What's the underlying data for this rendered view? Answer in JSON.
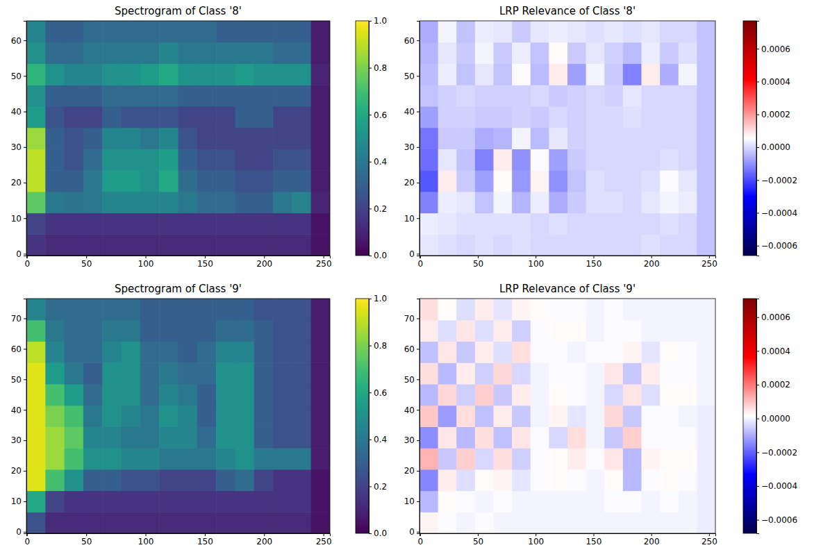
{
  "chart_data": [
    {
      "type": "heatmap",
      "title": "Spectrogram of Class '8'",
      "color": "viridis",
      "xlim": [
        -0.5,
        255.5
      ],
      "ylim": [
        -0.5,
        65.5
      ],
      "xticks": [
        0,
        50,
        100,
        150,
        200,
        250
      ],
      "yticks": [
        0,
        10,
        20,
        30,
        40,
        50,
        60
      ],
      "x_edges": [
        -0.5,
        15.5,
        31.5,
        47.5,
        63.5,
        79.5,
        95.5,
        111.5,
        127.5,
        143.5,
        159.5,
        175.5,
        191.5,
        207.5,
        223.5,
        239.5,
        255.5
      ],
      "y_edges": [
        -0.5,
        5.5,
        11.5,
        17.5,
        23.5,
        29.5,
        35.5,
        41.5,
        47.5,
        53.5,
        59.5,
        65.5
      ],
      "cells": [
        [
          0.15,
          0.12,
          0.12,
          0.12,
          0.12,
          0.12,
          0.12,
          0.12,
          0.12,
          0.12,
          0.12,
          0.12,
          0.12,
          0.12,
          0.12,
          0.05
        ],
        [
          0.2,
          0.15,
          0.15,
          0.15,
          0.15,
          0.15,
          0.15,
          0.15,
          0.15,
          0.15,
          0.15,
          0.15,
          0.15,
          0.15,
          0.15,
          0.05
        ],
        [
          0.75,
          0.4,
          0.38,
          0.4,
          0.45,
          0.45,
          0.45,
          0.45,
          0.4,
          0.35,
          0.35,
          0.3,
          0.3,
          0.4,
          0.45,
          0.1
        ],
        [
          0.9,
          0.3,
          0.3,
          0.4,
          0.55,
          0.55,
          0.5,
          0.6,
          0.35,
          0.3,
          0.3,
          0.25,
          0.25,
          0.3,
          0.3,
          0.08
        ],
        [
          0.9,
          0.3,
          0.25,
          0.35,
          0.5,
          0.5,
          0.5,
          0.55,
          0.3,
          0.25,
          0.25,
          0.2,
          0.2,
          0.25,
          0.25,
          0.08
        ],
        [
          0.85,
          0.3,
          0.25,
          0.3,
          0.45,
          0.45,
          0.4,
          0.45,
          0.25,
          0.2,
          0.2,
          0.2,
          0.2,
          0.2,
          0.2,
          0.08
        ],
        [
          0.55,
          0.25,
          0.2,
          0.2,
          0.3,
          0.25,
          0.25,
          0.25,
          0.2,
          0.2,
          0.2,
          0.3,
          0.3,
          0.2,
          0.2,
          0.08
        ],
        [
          0.5,
          0.3,
          0.3,
          0.3,
          0.35,
          0.35,
          0.35,
          0.35,
          0.3,
          0.3,
          0.3,
          0.3,
          0.3,
          0.3,
          0.3,
          0.08
        ],
        [
          0.65,
          0.5,
          0.45,
          0.45,
          0.5,
          0.5,
          0.55,
          0.6,
          0.5,
          0.5,
          0.5,
          0.55,
          0.5,
          0.5,
          0.5,
          0.1
        ],
        [
          0.5,
          0.35,
          0.35,
          0.4,
          0.4,
          0.4,
          0.4,
          0.45,
          0.4,
          0.4,
          0.4,
          0.4,
          0.4,
          0.35,
          0.35,
          0.08
        ],
        [
          0.45,
          0.3,
          0.3,
          0.35,
          0.35,
          0.35,
          0.35,
          0.35,
          0.35,
          0.35,
          0.3,
          0.3,
          0.3,
          0.3,
          0.3,
          0.08
        ]
      ],
      "colorbar": {
        "range": [
          0,
          1
        ],
        "ticks": [
          {
            "value": 0,
            "label": "0.0"
          },
          {
            "value": 0.2,
            "label": "0.2"
          },
          {
            "value": 0.4,
            "label": "0.4"
          },
          {
            "value": 0.6,
            "label": "0.6"
          },
          {
            "value": 0.8,
            "label": "0.8"
          },
          {
            "value": 1,
            "label": "1.0"
          }
        ]
      }
    },
    {
      "type": "heatmap",
      "title": "LRP Relevance of Class '8'",
      "color": "seismic",
      "xlim": [
        -0.5,
        255.5
      ],
      "ylim": [
        -0.5,
        65.5
      ],
      "xticks": [
        0,
        50,
        100,
        150,
        200,
        250
      ],
      "yticks": [
        0,
        10,
        20,
        30,
        40,
        50,
        60
      ],
      "x_edges": [
        -0.5,
        15.5,
        31.5,
        47.5,
        63.5,
        79.5,
        95.5,
        111.5,
        127.5,
        143.5,
        159.5,
        175.5,
        191.5,
        207.5,
        223.5,
        239.5,
        255.5
      ],
      "y_edges": [
        -0.5,
        5.5,
        11.5,
        17.5,
        23.5,
        29.5,
        35.5,
        41.5,
        47.5,
        53.5,
        59.5,
        65.5
      ],
      "cells": [
        [
          2e-05,
          1e-05,
          0,
          1e-05,
          0,
          1e-05,
          0,
          0,
          0,
          0,
          0,
          0,
          1e-05,
          0,
          0,
          -3e-05
        ],
        [
          3e-05,
          2e-05,
          1e-05,
          1e-05,
          1e-05,
          1e-05,
          0,
          1e-05,
          0,
          0,
          0,
          0,
          0,
          1e-05,
          0,
          -3e-05
        ],
        [
          -0.00012,
          3e-05,
          2e-05,
          -3e-05,
          4e-05,
          -5e-05,
          3e-05,
          -6e-05,
          -2e-05,
          1e-05,
          1e-05,
          0,
          2e-05,
          4e-05,
          3e-05,
          -3e-05
        ],
        [
          -0.00018,
          8e-05,
          -2e-05,
          -8e-05,
          6e-05,
          -9e-05,
          7e-05,
          -0.0001,
          -3e-05,
          1e-05,
          0,
          0,
          1e-05,
          5e-05,
          2e-05,
          -3e-05
        ],
        [
          -0.00015,
          2e-05,
          -3e-05,
          -0.00012,
          8e-05,
          -0.0001,
          5e-05,
          -8e-05,
          -2e-05,
          0,
          0,
          0,
          0,
          1e-05,
          0,
          -3e-05
        ],
        [
          -0.00014,
          -2e-05,
          -2e-05,
          -6e-05,
          -5e-05,
          4e-05,
          -4e-05,
          2e-05,
          -1e-05,
          0,
          0,
          0,
          0,
          0,
          0,
          -3e-05
        ],
        [
          -8e-05,
          -1e-05,
          -1e-05,
          -2e-05,
          -2e-05,
          -1e-05,
          -2e-05,
          0,
          -1e-05,
          0,
          0,
          1e-05,
          0,
          0,
          0,
          -3e-05
        ],
        [
          -3e-05,
          -1e-05,
          0,
          -1e-05,
          -1e-05,
          -1e-05,
          0,
          -2e-05,
          -1e-05,
          0,
          -1e-05,
          2e-05,
          0,
          0,
          0,
          -3e-05
        ],
        [
          -4e-05,
          3e-05,
          -3e-05,
          2e-05,
          -3e-05,
          5e-05,
          -4e-05,
          8e-05,
          -8e-05,
          4e-05,
          -2e-05,
          -0.00012,
          8e-05,
          -6e-05,
          4e-05,
          -3e-05
        ],
        [
          -5e-05,
          2e-05,
          -2e-05,
          4e-05,
          -2e-05,
          3e-05,
          -3e-05,
          6e-05,
          -2e-05,
          2e-05,
          -1e-05,
          -4e-05,
          3e-05,
          -2e-05,
          1e-05,
          -3e-05
        ],
        [
          -6e-05,
          4e-05,
          -3e-05,
          3e-05,
          2e-05,
          -2e-05,
          2e-05,
          3e-05,
          2e-05,
          1e-05,
          2e-05,
          1e-05,
          2e-05,
          0,
          0,
          -3e-05
        ]
      ],
      "colorbar": {
        "range": [
          -0.00066,
          0.00077
        ],
        "ticks": [
          {
            "value": -0.0006,
            "label": "−0.0006"
          },
          {
            "value": -0.0004,
            "label": "−0.0004"
          },
          {
            "value": -0.0002,
            "label": "−0.0002"
          },
          {
            "value": 0,
            "label": "0.0000"
          },
          {
            "value": 0.0002,
            "label": "0.0002"
          },
          {
            "value": 0.0004,
            "label": "0.0004"
          },
          {
            "value": 0.0006,
            "label": "0.0006"
          }
        ]
      }
    },
    {
      "type": "heatmap",
      "title": "Spectrogram of Class '9'",
      "color": "viridis",
      "xlim": [
        -0.5,
        255.5
      ],
      "ylim": [
        -0.5,
        76.5
      ],
      "xticks": [
        0,
        50,
        100,
        150,
        200,
        250
      ],
      "yticks": [
        0,
        10,
        20,
        30,
        40,
        50,
        60,
        70
      ],
      "x_edges": [
        -0.5,
        15.5,
        31.5,
        47.5,
        63.5,
        79.5,
        95.5,
        111.5,
        127.5,
        143.5,
        159.5,
        175.5,
        191.5,
        207.5,
        223.5,
        239.5,
        255.5
      ],
      "y_edges": [
        -0.5,
        6.5,
        13.5,
        20.5,
        27.5,
        34.5,
        41.5,
        48.5,
        55.5,
        62.5,
        69.5,
        76.5
      ],
      "cells": [
        [
          0.25,
          0.12,
          0.12,
          0.12,
          0.12,
          0.12,
          0.12,
          0.12,
          0.12,
          0.12,
          0.12,
          0.12,
          0.12,
          0.12,
          0.12,
          0.05
        ],
        [
          0.6,
          0.2,
          0.15,
          0.15,
          0.15,
          0.15,
          0.15,
          0.15,
          0.15,
          0.15,
          0.15,
          0.15,
          0.15,
          0.15,
          0.15,
          0.05
        ],
        [
          0.95,
          0.7,
          0.5,
          0.3,
          0.3,
          0.25,
          0.25,
          0.2,
          0.2,
          0.2,
          0.3,
          0.35,
          0.2,
          0.15,
          0.15,
          0.05
        ],
        [
          0.95,
          0.85,
          0.7,
          0.5,
          0.5,
          0.45,
          0.45,
          0.4,
          0.4,
          0.4,
          0.45,
          0.5,
          0.4,
          0.4,
          0.4,
          0.08
        ],
        [
          0.95,
          0.85,
          0.75,
          0.45,
          0.45,
          0.4,
          0.4,
          0.45,
          0.45,
          0.35,
          0.5,
          0.5,
          0.3,
          0.25,
          0.25,
          0.08
        ],
        [
          0.95,
          0.8,
          0.7,
          0.4,
          0.5,
          0.45,
          0.4,
          0.5,
          0.45,
          0.3,
          0.5,
          0.5,
          0.3,
          0.25,
          0.25,
          0.08
        ],
        [
          0.95,
          0.7,
          0.55,
          0.35,
          0.5,
          0.5,
          0.35,
          0.45,
          0.4,
          0.3,
          0.5,
          0.5,
          0.3,
          0.25,
          0.25,
          0.08
        ],
        [
          0.95,
          0.55,
          0.4,
          0.3,
          0.5,
          0.5,
          0.35,
          0.4,
          0.35,
          0.35,
          0.5,
          0.5,
          0.3,
          0.25,
          0.25,
          0.08
        ],
        [
          0.9,
          0.45,
          0.35,
          0.35,
          0.45,
          0.5,
          0.35,
          0.35,
          0.3,
          0.35,
          0.45,
          0.45,
          0.3,
          0.25,
          0.25,
          0.08
        ],
        [
          0.7,
          0.4,
          0.35,
          0.35,
          0.4,
          0.4,
          0.3,
          0.3,
          0.3,
          0.3,
          0.35,
          0.35,
          0.3,
          0.25,
          0.25,
          0.08
        ],
        [
          0.45,
          0.35,
          0.35,
          0.35,
          0.35,
          0.35,
          0.3,
          0.3,
          0.3,
          0.3,
          0.3,
          0.3,
          0.25,
          0.25,
          0.25,
          0.08
        ]
      ],
      "colorbar": {
        "range": [
          0,
          1
        ],
        "ticks": [
          {
            "value": 0,
            "label": "0.0"
          },
          {
            "value": 0.2,
            "label": "0.2"
          },
          {
            "value": 0.4,
            "label": "0.4"
          },
          {
            "value": 0.6,
            "label": "0.6"
          },
          {
            "value": 0.8,
            "label": "0.8"
          },
          {
            "value": 1,
            "label": "1.0"
          }
        ]
      }
    },
    {
      "type": "heatmap",
      "title": "LRP Relevance of Class '9'",
      "color": "seismic",
      "xlim": [
        -0.5,
        255.5
      ],
      "ylim": [
        -0.5,
        76.5
      ],
      "xticks": [
        0,
        50,
        100,
        150,
        200,
        250
      ],
      "yticks": [
        0,
        10,
        20,
        30,
        40,
        50,
        60,
        70
      ],
      "x_edges": [
        -0.5,
        15.5,
        31.5,
        47.5,
        63.5,
        79.5,
        95.5,
        111.5,
        127.5,
        143.5,
        159.5,
        175.5,
        191.5,
        207.5,
        223.5,
        239.5,
        255.5
      ],
      "y_edges": [
        -0.5,
        6.5,
        13.5,
        20.5,
        27.5,
        34.5,
        41.5,
        48.5,
        55.5,
        62.5,
        69.5,
        76.5
      ],
      "cells": [
        [
          3e-05,
          1e-05,
          0,
          1e-05,
          0,
          0,
          0,
          0,
          0,
          0,
          0,
          0,
          0,
          0,
          0,
          -1e-05
        ],
        [
          -8e-05,
          2e-05,
          1e-05,
          0,
          1e-05,
          0,
          0,
          0,
          0,
          0,
          1e-05,
          1e-05,
          0,
          1e-05,
          0,
          -1e-05
        ],
        [
          -0.00015,
          4e-05,
          -3e-05,
          2e-05,
          3e-05,
          -2e-05,
          1e-05,
          2e-05,
          1e-05,
          0,
          2e-05,
          -8e-05,
          1e-05,
          2e-05,
          1e-05,
          -1e-05
        ],
        [
          0.00012,
          -6e-05,
          8e-05,
          -4e-05,
          6e-05,
          -5e-05,
          1e-05,
          2e-05,
          4e-05,
          1e-05,
          5e-05,
          -8e-05,
          3e-05,
          2e-05,
          2e-05,
          -1e-05
        ],
        [
          -0.00014,
          5e-05,
          -8e-05,
          6e-05,
          -7e-05,
          5e-05,
          1e-05,
          -4e-05,
          6e-05,
          0,
          -6e-05,
          8e-05,
          1e-05,
          1e-05,
          1e-05,
          -1e-05
        ],
        [
          9e-05,
          -0.00012,
          6e-05,
          -7e-05,
          4e-05,
          -6e-05,
          0,
          3e-05,
          -2e-05,
          0,
          7e-05,
          -6e-05,
          1e-05,
          1e-05,
          0,
          -1e-05
        ],
        [
          -8e-05,
          7e-05,
          -5e-05,
          8e-05,
          -6e-05,
          4e-05,
          0,
          2e-05,
          1e-05,
          0,
          -4e-05,
          5e-05,
          -3e-05,
          2e-05,
          2e-05,
          0
        ],
        [
          6e-05,
          -8e-05,
          4e-05,
          -5e-05,
          7e-05,
          -4e-05,
          0,
          1e-05,
          1e-05,
          0,
          5e-05,
          -6e-05,
          4e-05,
          1e-05,
          1e-05,
          0
        ],
        [
          -7e-05,
          5e-05,
          -6e-05,
          4e-05,
          -3e-05,
          6e-05,
          1e-05,
          1e-05,
          0,
          1e-05,
          1e-05,
          3e-05,
          -2e-05,
          2e-05,
          1e-05,
          0
        ],
        [
          4e-05,
          -3e-05,
          5e-05,
          -3e-05,
          4e-05,
          -5e-05,
          1e-05,
          2e-05,
          2e-05,
          0,
          1e-05,
          1e-05,
          0,
          0,
          0,
          0
        ],
        [
          6e-05,
          2e-05,
          -3e-05,
          4e-05,
          -2e-05,
          3e-05,
          2e-05,
          1e-05,
          1e-05,
          0,
          1e-05,
          0,
          0,
          0,
          0,
          0
        ]
      ],
      "colorbar": {
        "range": [
          -0.00068,
          0.00071
        ],
        "ticks": [
          {
            "value": -0.0006,
            "label": "−0.0006"
          },
          {
            "value": -0.0004,
            "label": "−0.0004"
          },
          {
            "value": -0.0002,
            "label": "−0.0002"
          },
          {
            "value": 0,
            "label": "0.0000"
          },
          {
            "value": 0.0002,
            "label": "0.0002"
          },
          {
            "value": 0.0004,
            "label": "0.0004"
          },
          {
            "value": 0.0006,
            "label": "0.0006"
          }
        ]
      }
    }
  ]
}
